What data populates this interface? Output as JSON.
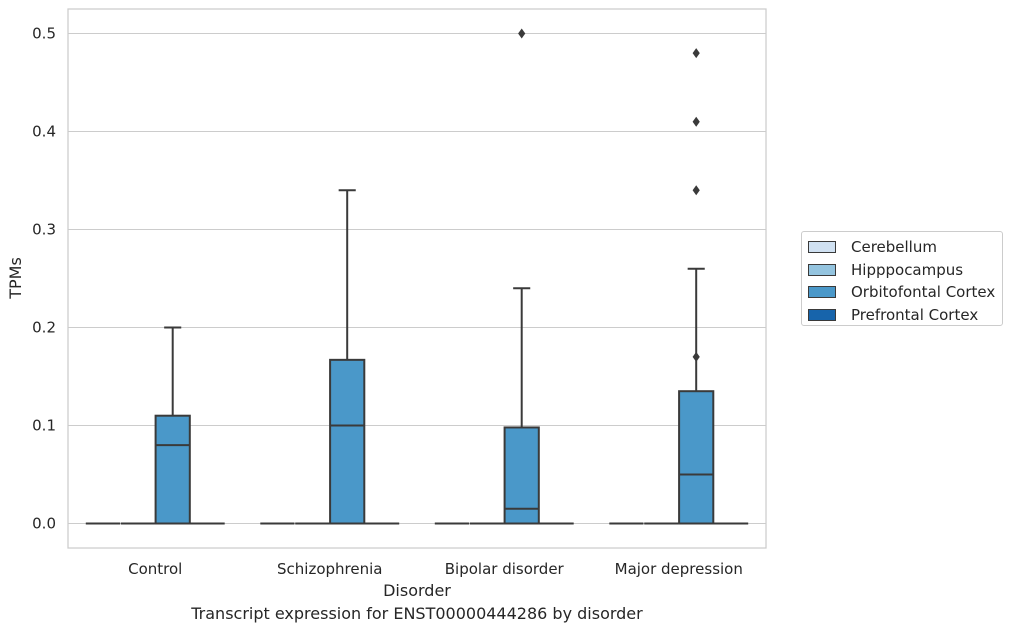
{
  "chart_data": {
    "type": "box",
    "title": "",
    "caption": "Transcript expression for ENST00000444286 by disorder",
    "xlabel": "Disorder",
    "ylabel": "TPMs",
    "ylim": [
      -0.025,
      0.525
    ],
    "yticks": [
      0.0,
      0.1,
      0.2,
      0.3,
      0.4,
      0.5
    ],
    "ytick_labels": [
      "0.0",
      "0.1",
      "0.2",
      "0.3",
      "0.4",
      "0.5"
    ],
    "categories": [
      "Control",
      "Schizophrenia",
      "Bipolar disorder",
      "Major depression"
    ],
    "grid": true,
    "legend_position": "right",
    "series": [
      {
        "name": "Cerebellum",
        "color": "#d0e1f2",
        "boxes": [
          {
            "q1": 0,
            "median": 0,
            "q3": 0,
            "whisker_low": 0,
            "whisker_high": 0,
            "outliers": []
          },
          {
            "q1": 0,
            "median": 0,
            "q3": 0,
            "whisker_low": 0,
            "whisker_high": 0,
            "outliers": []
          },
          {
            "q1": 0,
            "median": 0,
            "q3": 0,
            "whisker_low": 0,
            "whisker_high": 0,
            "outliers": []
          },
          {
            "q1": 0,
            "median": 0,
            "q3": 0,
            "whisker_low": 0,
            "whisker_high": 0,
            "outliers": []
          }
        ]
      },
      {
        "name": "Hipppocampus",
        "color": "#94c4df",
        "boxes": [
          {
            "q1": 0,
            "median": 0,
            "q3": 0,
            "whisker_low": 0,
            "whisker_high": 0,
            "outliers": []
          },
          {
            "q1": 0,
            "median": 0,
            "q3": 0,
            "whisker_low": 0,
            "whisker_high": 0,
            "outliers": []
          },
          {
            "q1": 0,
            "median": 0,
            "q3": 0,
            "whisker_low": 0,
            "whisker_high": 0,
            "outliers": []
          },
          {
            "q1": 0,
            "median": 0,
            "q3": 0,
            "whisker_low": 0,
            "whisker_high": 0,
            "outliers": []
          }
        ]
      },
      {
        "name": "Orbitofontal Cortex",
        "color": "#4a98c9",
        "boxes": [
          {
            "q1": 0,
            "median": 0.08,
            "q3": 0.11,
            "whisker_low": 0,
            "whisker_high": 0.2,
            "outliers": []
          },
          {
            "q1": 0,
            "median": 0.1,
            "q3": 0.167,
            "whisker_low": 0,
            "whisker_high": 0.34,
            "outliers": []
          },
          {
            "q1": 0,
            "median": 0.015,
            "q3": 0.098,
            "whisker_low": 0,
            "whisker_high": 0.24,
            "outliers": [
              0.5
            ]
          },
          {
            "q1": 0,
            "median": 0.05,
            "q3": 0.135,
            "whisker_low": 0,
            "whisker_high": 0.26,
            "outliers": [
              0.17,
              0.34,
              0.41,
              0.48
            ]
          }
        ]
      },
      {
        "name": "Prefrontal Cortex",
        "color": "#1764ab",
        "boxes": [
          {
            "q1": 0,
            "median": 0,
            "q3": 0,
            "whisker_low": 0,
            "whisker_high": 0,
            "outliers": []
          },
          {
            "q1": 0,
            "median": 0,
            "q3": 0,
            "whisker_low": 0,
            "whisker_high": 0,
            "outliers": []
          },
          {
            "q1": 0,
            "median": 0,
            "q3": 0,
            "whisker_low": 0,
            "whisker_high": 0,
            "outliers": []
          },
          {
            "q1": 0,
            "median": 0,
            "q3": 0,
            "whisker_low": 0,
            "whisker_high": 0,
            "outliers": []
          }
        ]
      }
    ],
    "colors": {
      "grid": "#cccccc",
      "axes_edge": "#cccccc",
      "line": "#3a3a3a"
    }
  }
}
